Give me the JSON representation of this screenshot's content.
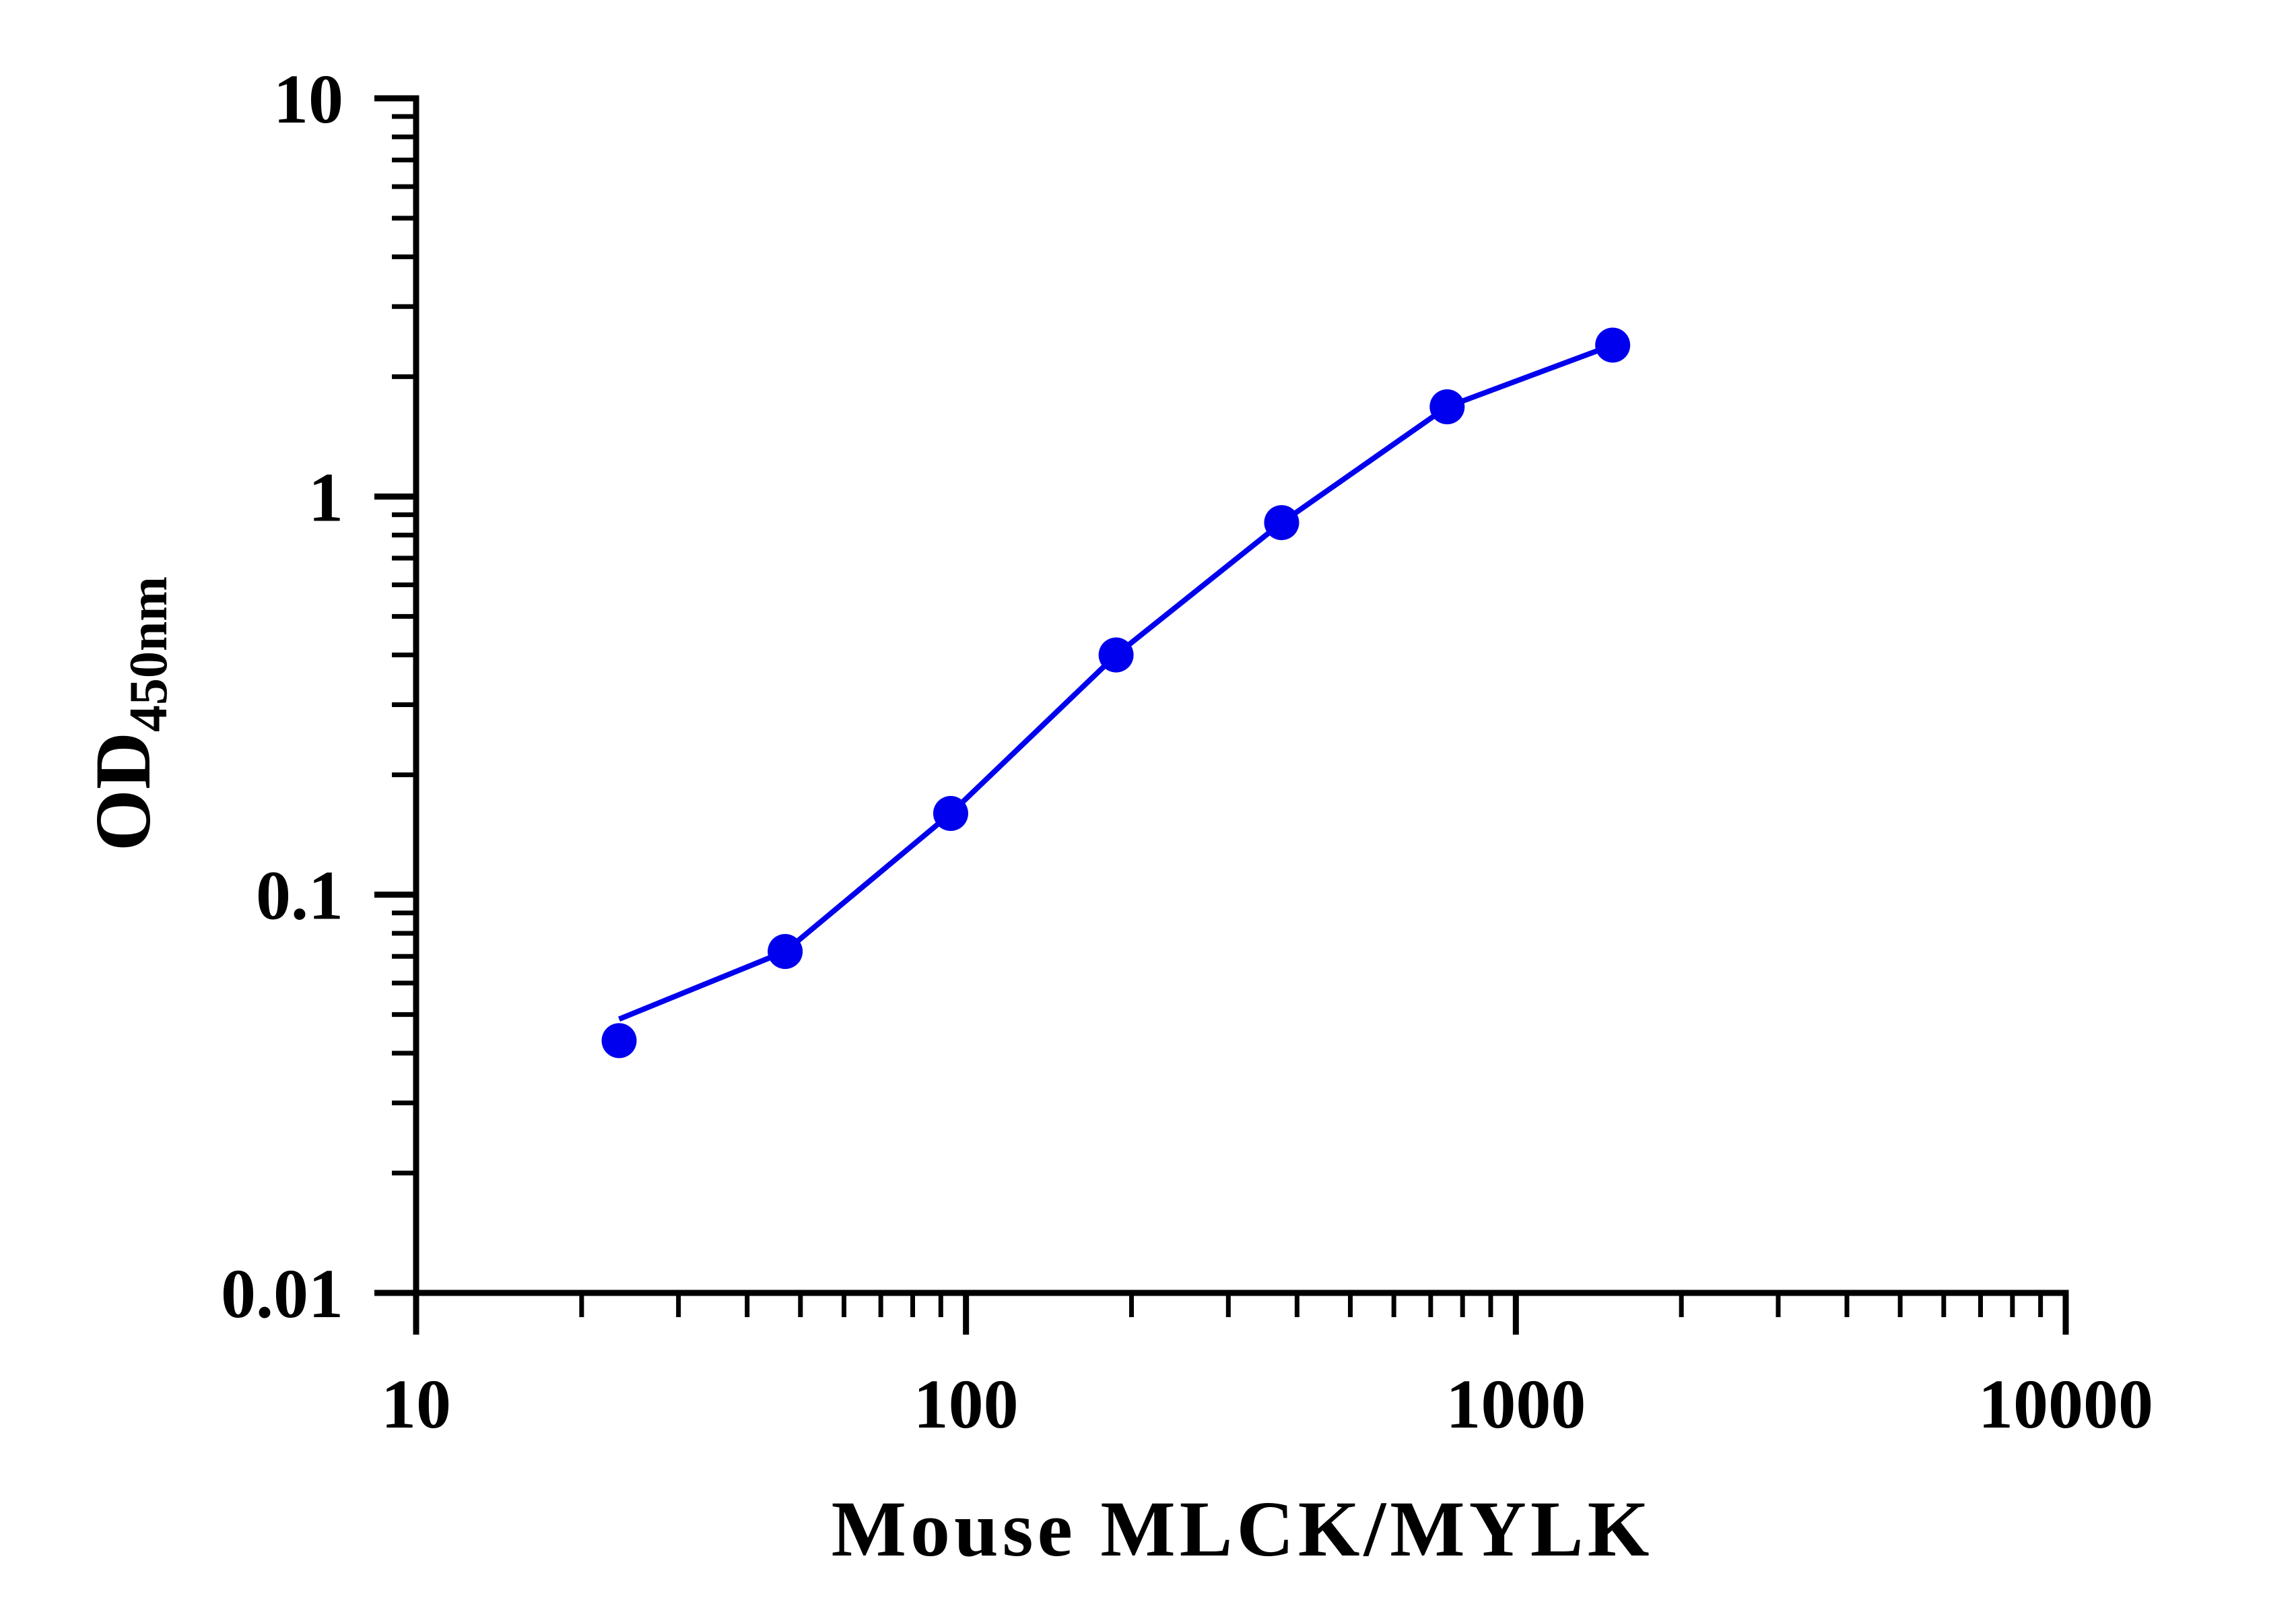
{
  "chart_data": {
    "type": "line",
    "xlabel": "Mouse MLCK/MYLK",
    "ylabel": "OD",
    "ylabel_subscript": "450nm",
    "x_scale": "log",
    "y_scale": "log",
    "xlim": [
      10,
      10000
    ],
    "ylim": [
      0.01,
      10
    ],
    "x_ticks": [
      "10",
      "100",
      "1000",
      "10000"
    ],
    "y_ticks": [
      "0.01",
      "0.1",
      "1",
      "10"
    ],
    "grid": false,
    "series": [
      {
        "color": "#0000ee",
        "x": [
          23.4,
          46.9,
          93.8,
          187.5,
          375,
          750,
          1500
        ],
        "y": [
          0.043,
          0.072,
          0.16,
          0.4,
          0.86,
          1.68,
          2.4
        ]
      }
    ]
  }
}
